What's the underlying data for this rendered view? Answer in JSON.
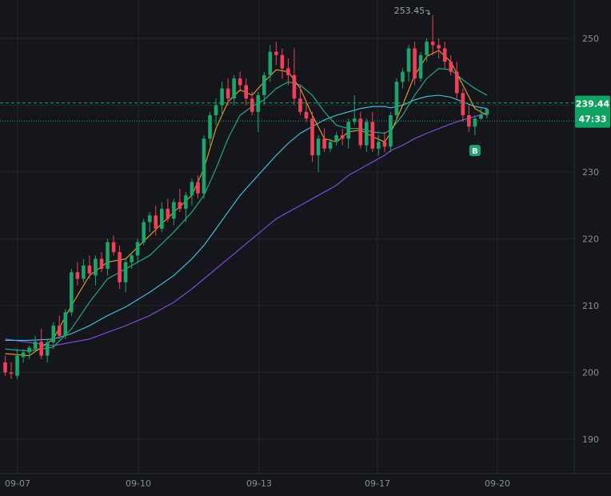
{
  "chart_data": {
    "type": "candlestick",
    "x_tick_labels": [
      "09-07",
      "09-10",
      "09-13",
      "09-17",
      "09-20"
    ],
    "y_ticks": [
      190,
      200,
      210,
      220,
      230,
      240,
      250
    ],
    "ylim": [
      183,
      259
    ],
    "grid": true,
    "last_price": "239.44",
    "countdown": "47:33",
    "peak_label": "253.45",
    "signal_label": "B",
    "colors": {
      "background": "#15161b",
      "grid": "#24262d",
      "up": "#1fa36c",
      "down": "#f0405a",
      "ma_fast": "#e8a22a",
      "ma_mid": "#22b58a",
      "ma_slow": "#47c7e6",
      "ma_long": "#8e4de8",
      "price_badge": "#11a364",
      "axis_text": "#8a8d96"
    },
    "candles": [
      [
        201.5,
        202.5,
        199.5,
        200.0
      ],
      [
        200.0,
        201.5,
        199.0,
        199.8
      ],
      [
        199.5,
        203.5,
        199.0,
        202.5
      ],
      [
        202.3,
        203.5,
        201.5,
        203.0
      ],
      [
        203.0,
        204.0,
        202.0,
        203.7
      ],
      [
        203.5,
        205.5,
        203.0,
        204.6
      ],
      [
        204.6,
        206.5,
        202.0,
        202.5
      ],
      [
        202.5,
        205.0,
        201.5,
        204.5
      ],
      [
        204.5,
        207.5,
        203.5,
        207.0
      ],
      [
        207.0,
        208.5,
        205.0,
        205.5
      ],
      [
        205.5,
        209.5,
        205.0,
        209.0
      ],
      [
        209.0,
        215.5,
        208.5,
        215.0
      ],
      [
        215.0,
        216.5,
        213.0,
        214.0
      ],
      [
        214.0,
        217.0,
        213.5,
        216.0
      ],
      [
        216.0,
        217.5,
        214.0,
        214.8
      ],
      [
        214.5,
        217.5,
        213.0,
        217.0
      ],
      [
        217.0,
        218.0,
        215.0,
        215.5
      ],
      [
        215.5,
        220.0,
        214.5,
        219.5
      ],
      [
        219.5,
        220.5,
        217.5,
        218.0
      ],
      [
        218.0,
        219.0,
        212.5,
        213.5
      ],
      [
        213.5,
        217.0,
        212.0,
        216.5
      ],
      [
        216.5,
        218.0,
        215.5,
        217.5
      ],
      [
        217.5,
        220.0,
        216.5,
        219.5
      ],
      [
        219.5,
        223.0,
        219.0,
        222.5
      ],
      [
        222.5,
        224.0,
        221.0,
        223.5
      ],
      [
        223.5,
        225.0,
        220.5,
        221.5
      ],
      [
        221.5,
        225.5,
        221.0,
        224.5
      ],
      [
        224.5,
        226.0,
        222.5,
        223.0
      ],
      [
        223.0,
        226.0,
        222.0,
        225.5
      ],
      [
        225.5,
        227.5,
        224.0,
        224.5
      ],
      [
        224.5,
        227.0,
        222.5,
        226.5
      ],
      [
        226.5,
        229.0,
        225.0,
        228.5
      ],
      [
        228.5,
        229.5,
        226.0,
        226.8
      ],
      [
        226.8,
        235.5,
        226.0,
        235.0
      ],
      [
        235.0,
        239.0,
        234.0,
        238.5
      ],
      [
        238.5,
        241.0,
        237.0,
        240.0
      ],
      [
        240.0,
        243.5,
        238.5,
        242.5
      ],
      [
        242.5,
        244.0,
        240.0,
        241.0
      ],
      [
        241.0,
        244.5,
        240.0,
        244.0
      ],
      [
        244.0,
        245.0,
        242.0,
        243.0
      ],
      [
        243.0,
        244.0,
        240.0,
        241.0
      ],
      [
        241.0,
        242.0,
        238.5,
        239.0
      ],
      [
        239.0,
        242.0,
        236.0,
        241.5
      ],
      [
        241.5,
        245.0,
        240.0,
        244.5
      ],
      [
        244.5,
        249.0,
        243.5,
        248.0
      ],
      [
        248.0,
        249.5,
        246.0,
        247.5
      ],
      [
        247.5,
        248.5,
        244.0,
        245.5
      ],
      [
        245.5,
        247.0,
        243.0,
        244.5
      ],
      [
        244.5,
        248.5,
        240.0,
        241.0
      ],
      [
        241.0,
        243.0,
        238.5,
        239.0
      ],
      [
        239.0,
        240.5,
        237.5,
        238.0
      ],
      [
        238.0,
        239.0,
        231.5,
        232.5
      ],
      [
        232.5,
        235.5,
        230.0,
        235.0
      ],
      [
        235.0,
        236.5,
        233.0,
        233.5
      ],
      [
        233.5,
        235.0,
        233.0,
        234.5
      ],
      [
        234.5,
        236.0,
        234.0,
        235.5
      ],
      [
        235.5,
        236.5,
        234.0,
        235.0
      ],
      [
        235.0,
        238.0,
        233.5,
        237.5
      ],
      [
        237.5,
        241.5,
        237.0,
        238.0
      ],
      [
        238.0,
        239.0,
        233.5,
        234.0
      ],
      [
        234.0,
        238.0,
        233.0,
        237.5
      ],
      [
        237.5,
        239.0,
        233.0,
        233.5
      ],
      [
        233.5,
        235.5,
        232.5,
        234.5
      ],
      [
        234.5,
        236.0,
        233.0,
        233.8
      ],
      [
        233.8,
        239.0,
        233.0,
        238.5
      ],
      [
        238.5,
        244.0,
        238.0,
        243.5
      ],
      [
        243.5,
        245.5,
        242.5,
        245.0
      ],
      [
        245.0,
        249.0,
        243.5,
        248.5
      ],
      [
        248.5,
        249.5,
        243.0,
        244.0
      ],
      [
        244.0,
        248.0,
        243.5,
        247.5
      ],
      [
        247.5,
        250.0,
        246.5,
        249.5
      ],
      [
        249.5,
        253.5,
        247.5,
        249.0
      ],
      [
        249.0,
        250.0,
        247.0,
        248.5
      ],
      [
        248.5,
        249.5,
        245.5,
        246.5
      ],
      [
        246.5,
        247.5,
        244.5,
        245.0
      ],
      [
        245.0,
        246.5,
        241.0,
        241.8
      ],
      [
        241.8,
        242.5,
        237.5,
        238.5
      ],
      [
        238.5,
        240.0,
        236.0,
        236.8
      ],
      [
        236.8,
        238.5,
        235.5,
        238.0
      ],
      [
        238.0,
        239.5,
        237.8,
        238.6
      ],
      [
        238.6,
        239.6,
        238.0,
        239.44
      ]
    ],
    "ma_fast": [
      [
        0,
        202.8
      ],
      [
        4,
        202.5
      ],
      [
        8,
        205.0
      ],
      [
        11,
        210.0
      ],
      [
        14,
        214.5
      ],
      [
        17,
        216.5
      ],
      [
        20,
        217.0
      ],
      [
        24,
        220.5
      ],
      [
        28,
        224.0
      ],
      [
        31,
        226.5
      ],
      [
        33,
        230.5
      ],
      [
        35,
        236.5
      ],
      [
        37,
        240.5
      ],
      [
        39,
        242.3
      ],
      [
        41,
        241.5
      ],
      [
        43,
        243.5
      ],
      [
        45,
        245.3
      ],
      [
        47,
        245.0
      ],
      [
        49,
        242.5
      ],
      [
        51,
        238.5
      ],
      [
        53,
        235.0
      ],
      [
        55,
        234.5
      ],
      [
        57,
        236.0
      ],
      [
        59,
        236.3
      ],
      [
        61,
        235.3
      ],
      [
        63,
        234.5
      ],
      [
        64,
        235.8
      ],
      [
        66,
        240.0
      ],
      [
        68,
        244.5
      ],
      [
        70,
        247.3
      ],
      [
        72,
        248.2
      ],
      [
        74,
        246.5
      ],
      [
        76,
        243.0
      ],
      [
        78,
        239.5
      ],
      [
        80,
        238.5
      ]
    ],
    "ma_mid": [
      [
        0,
        203.5
      ],
      [
        4,
        203.2
      ],
      [
        8,
        203.8
      ],
      [
        11,
        206.5
      ],
      [
        14,
        210.5
      ],
      [
        17,
        214.0
      ],
      [
        20,
        215.5
      ],
      [
        24,
        217.5
      ],
      [
        28,
        221.0
      ],
      [
        31,
        224.0
      ],
      [
        33,
        226.5
      ],
      [
        35,
        230.5
      ],
      [
        37,
        235.0
      ],
      [
        39,
        238.5
      ],
      [
        41,
        239.8
      ],
      [
        43,
        240.8
      ],
      [
        45,
        242.5
      ],
      [
        47,
        243.5
      ],
      [
        49,
        243.0
      ],
      [
        51,
        241.5
      ],
      [
        53,
        239.0
      ],
      [
        55,
        237.0
      ],
      [
        57,
        236.5
      ],
      [
        59,
        236.5
      ],
      [
        61,
        236.0
      ],
      [
        63,
        235.8
      ],
      [
        64,
        236.3
      ],
      [
        66,
        238.5
      ],
      [
        68,
        241.5
      ],
      [
        70,
        244.0
      ],
      [
        72,
        245.5
      ],
      [
        74,
        245.3
      ],
      [
        76,
        243.8
      ],
      [
        78,
        242.5
      ],
      [
        80,
        241.5
      ]
    ],
    "ma_slow": [
      [
        0,
        204.8
      ],
      [
        4,
        204.8
      ],
      [
        8,
        205.0
      ],
      [
        11,
        205.8
      ],
      [
        14,
        207.0
      ],
      [
        17,
        208.5
      ],
      [
        20,
        209.8
      ],
      [
        24,
        212.0
      ],
      [
        28,
        214.5
      ],
      [
        31,
        217.0
      ],
      [
        33,
        219.0
      ],
      [
        35,
        221.5
      ],
      [
        37,
        224.0
      ],
      [
        39,
        226.5
      ],
      [
        41,
        228.5
      ],
      [
        43,
        230.5
      ],
      [
        45,
        232.5
      ],
      [
        47,
        234.3
      ],
      [
        49,
        235.8
      ],
      [
        51,
        236.8
      ],
      [
        53,
        237.8
      ],
      [
        55,
        238.5
      ],
      [
        57,
        239.0
      ],
      [
        59,
        239.5
      ],
      [
        61,
        239.8
      ],
      [
        63,
        239.8
      ],
      [
        64,
        239.6
      ],
      [
        66,
        240.0
      ],
      [
        68,
        240.8
      ],
      [
        70,
        241.3
      ],
      [
        72,
        241.5
      ],
      [
        74,
        241.2
      ],
      [
        76,
        240.5
      ],
      [
        78,
        239.8
      ],
      [
        80,
        239.5
      ]
    ],
    "ma_long": [
      [
        0,
        205.0
      ],
      [
        4,
        204.5
      ],
      [
        8,
        204.0
      ],
      [
        11,
        204.5
      ],
      [
        14,
        205.0
      ],
      [
        17,
        206.0
      ],
      [
        20,
        207.0
      ],
      [
        24,
        208.5
      ],
      [
        28,
        210.5
      ],
      [
        31,
        212.5
      ],
      [
        33,
        214.0
      ],
      [
        35,
        215.5
      ],
      [
        37,
        217.0
      ],
      [
        39,
        218.5
      ],
      [
        41,
        220.0
      ],
      [
        43,
        221.5
      ],
      [
        45,
        223.0
      ],
      [
        47,
        224.0
      ],
      [
        49,
        225.0
      ],
      [
        51,
        226.0
      ],
      [
        53,
        227.0
      ],
      [
        55,
        228.0
      ],
      [
        57,
        229.5
      ],
      [
        59,
        230.5
      ],
      [
        61,
        231.5
      ],
      [
        63,
        232.5
      ],
      [
        64,
        233.2
      ],
      [
        66,
        234.0
      ],
      [
        68,
        235.0
      ],
      [
        70,
        235.8
      ],
      [
        72,
        236.5
      ],
      [
        74,
        237.2
      ],
      [
        76,
        237.8
      ],
      [
        78,
        238.3
      ],
      [
        80,
        238.8
      ]
    ]
  }
}
